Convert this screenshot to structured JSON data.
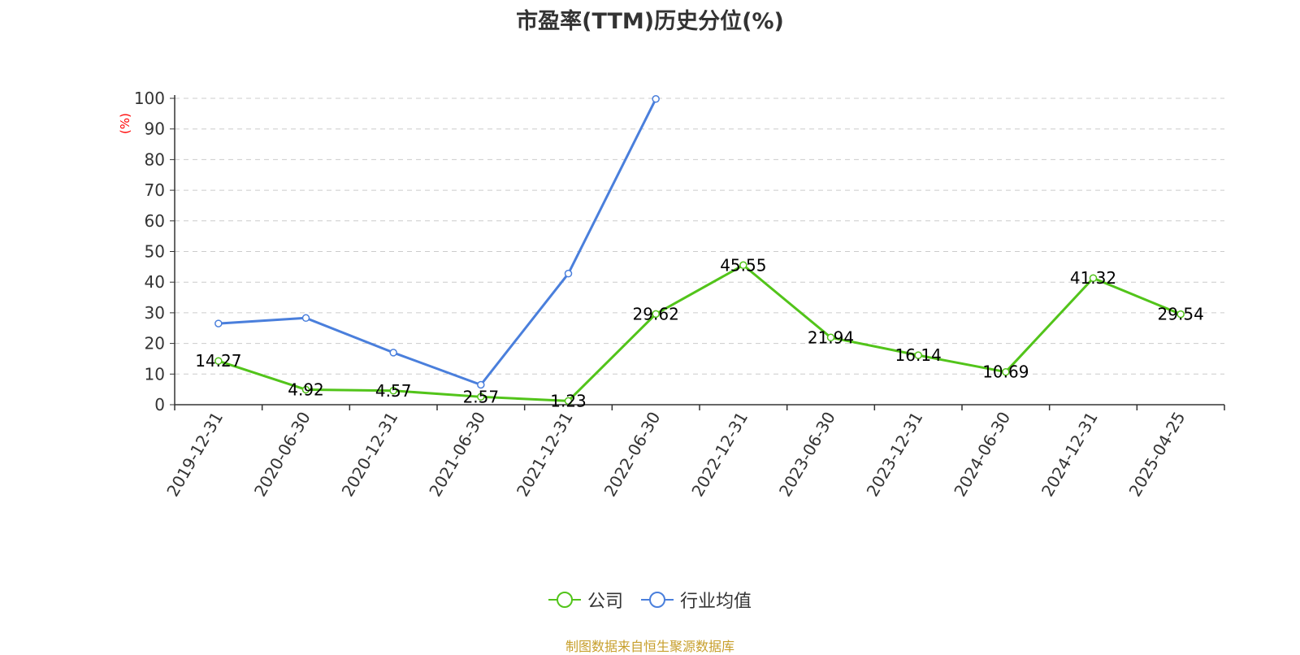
{
  "chart_data": {
    "type": "line",
    "title": "市盈率(TTM)历史分位(%)",
    "ylabel": "(%)",
    "categories": [
      "2019-12-31",
      "2020-06-30",
      "2020-12-31",
      "2021-06-30",
      "2021-12-31",
      "2022-06-30",
      "2022-12-31",
      "2023-06-30",
      "2023-12-31",
      "2024-06-30",
      "2024-12-31",
      "2025-04-25"
    ],
    "ylim": [
      0,
      100
    ],
    "yticks": [
      "0",
      "10",
      "20",
      "30",
      "40",
      "50",
      "60",
      "70",
      "80",
      "90",
      "100"
    ],
    "grid": true,
    "legend_position": "bottom-center",
    "series": [
      {
        "name": "公司",
        "color": "#52c41a",
        "values": [
          14.27,
          4.92,
          4.57,
          2.57,
          1.23,
          29.62,
          45.55,
          21.94,
          16.14,
          10.69,
          41.32,
          29.54
        ],
        "labels": [
          "14.27",
          "4.92",
          "4.57",
          "2.57",
          "1.23",
          "29.62",
          "45.55",
          "21.94",
          "16.14",
          "10.69",
          "41.32",
          "29.54"
        ]
      },
      {
        "name": "行业均值",
        "color": "#4a7fdc",
        "values": [
          26.5,
          28.3,
          17.0,
          6.5,
          42.8,
          99.8,
          null,
          null,
          null,
          null,
          null,
          null
        ]
      }
    ],
    "source": "制图数据来自恒生聚源数据库"
  }
}
